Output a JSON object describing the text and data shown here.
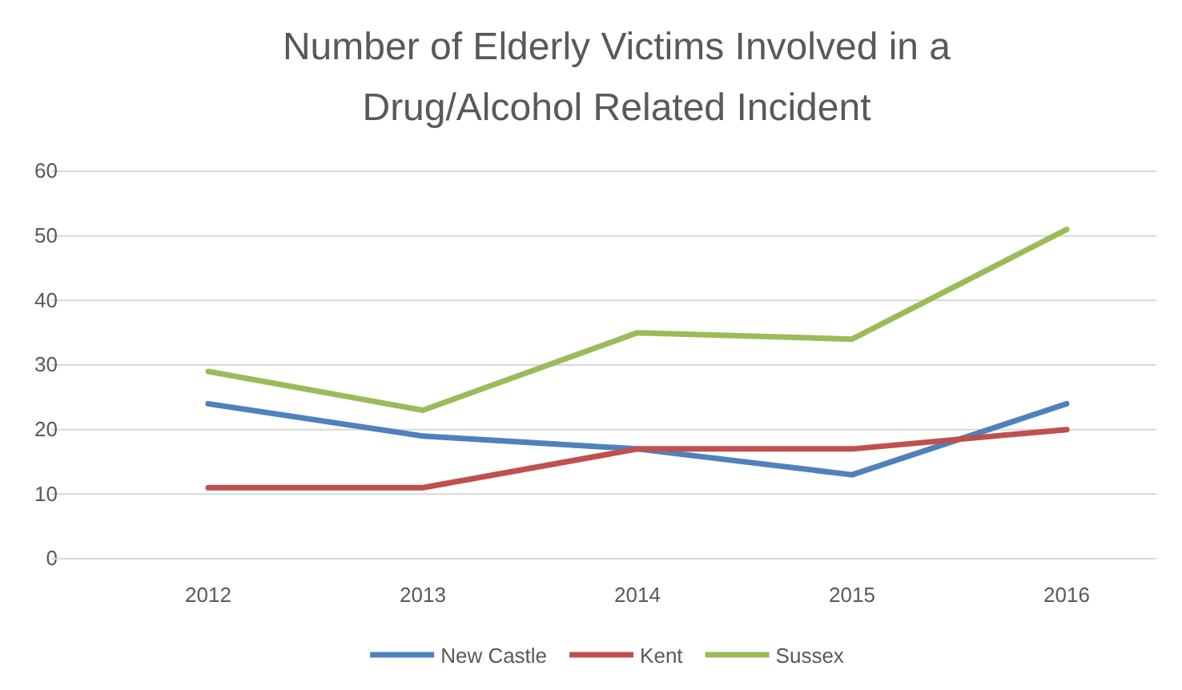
{
  "chart_data": {
    "type": "line",
    "title": "Number of Elderly Victims Involved in a Drug/Alcohol Related Incident",
    "categories": [
      "2012",
      "2013",
      "2014",
      "2015",
      "2016"
    ],
    "series": [
      {
        "name": "New Castle",
        "color": "#4f81bd",
        "values": [
          24,
          19,
          17,
          13,
          24
        ]
      },
      {
        "name": "Kent",
        "color": "#c0504d",
        "values": [
          11,
          11,
          17,
          17,
          20
        ]
      },
      {
        "name": "Sussex",
        "color": "#9bbb59",
        "values": [
          29,
          23,
          35,
          34,
          51
        ]
      }
    ],
    "ylim": [
      0,
      60
    ],
    "yticks": [
      0,
      10,
      20,
      30,
      40,
      50,
      60
    ],
    "grid": "y",
    "legend": "bottom",
    "marker": "none",
    "line_style": "solid"
  }
}
